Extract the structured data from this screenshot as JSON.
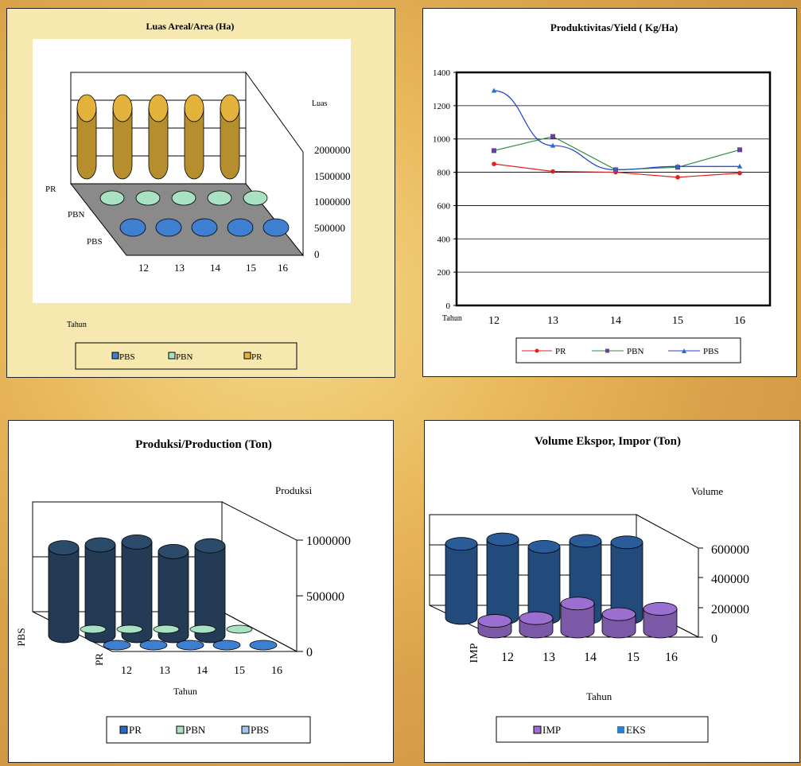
{
  "colors": {
    "pbs": "#3f7fd0",
    "pbn": "#a8e2c2",
    "pr_area": "#e3b23a",
    "pr_line": "#e02020",
    "pbn_line": "#2f8f3a",
    "pbs_line": "#2040d0",
    "prod_bar": "#2c4a6a",
    "eks": "#2a5c9a",
    "imp": "#9b6fd0"
  },
  "chart_data": [
    {
      "type": "bar",
      "id": "area",
      "title": "Luas Areal/Area (Ha)",
      "xlabel": "Tahun",
      "ylabel": "Luas",
      "categories": [
        "12",
        "13",
        "14",
        "15",
        "16"
      ],
      "yticks": [
        "2000000",
        "1500000",
        "1000000",
        "500000",
        "0"
      ],
      "depth_labels": [
        "PR",
        "PBN",
        "PBS"
      ],
      "series": [
        {
          "name": "PBS",
          "values": [
            0,
            0,
            0,
            0,
            0
          ]
        },
        {
          "name": "PBN",
          "values": [
            0,
            0,
            0,
            0,
            0
          ]
        },
        {
          "name": "PR",
          "values": [
            2000000,
            2000000,
            2000000,
            2000000,
            2000000
          ]
        }
      ],
      "legend": [
        "PBS",
        "PBN",
        "PR"
      ]
    },
    {
      "type": "line",
      "id": "yield",
      "title": "Produktivitas/Yield ( Kg/Ha)",
      "xlabel": "Tahun",
      "categories": [
        "12",
        "13",
        "14",
        "15",
        "16"
      ],
      "ylim": [
        0,
        1400
      ],
      "yticks": [
        "1400",
        "1200",
        "1000",
        "800",
        "600",
        "400",
        "200",
        "0"
      ],
      "series": [
        {
          "name": "PR",
          "values": [
            850,
            805,
            800,
            770,
            795
          ]
        },
        {
          "name": "PBN",
          "values": [
            930,
            1015,
            815,
            830,
            935
          ]
        },
        {
          "name": "PBS",
          "values": [
            1290,
            960,
            815,
            835,
            835
          ]
        }
      ],
      "legend": [
        "PR",
        "PBN",
        "PBS"
      ]
    },
    {
      "type": "bar",
      "id": "production",
      "title": "Produksi/Production  (Ton)",
      "xlabel": "Tahun",
      "ylabel": "Produksi",
      "categories": [
        "12",
        "13",
        "14",
        "15",
        "16"
      ],
      "yticks": [
        "1000000",
        "500000",
        "0"
      ],
      "depth_labels": [
        "PBS",
        "PR"
      ],
      "series": [
        {
          "name": "PR",
          "values": [
            0,
            0,
            0,
            0,
            0
          ]
        },
        {
          "name": "PBN",
          "values": [
            0,
            0,
            0,
            0,
            0
          ]
        },
        {
          "name": "PBS",
          "values": [
            920000,
            950000,
            980000,
            880000,
            940000
          ]
        }
      ],
      "legend": [
        "PR",
        "PBN",
        "PBS"
      ]
    },
    {
      "type": "bar",
      "id": "export",
      "title": "Volume  Ekspor,  Impor (Ton)",
      "xlabel": "Tahun",
      "ylabel": "Volume",
      "categories": [
        "12",
        "13",
        "14",
        "15",
        "16"
      ],
      "yticks": [
        "600000",
        "400000",
        "200000",
        "0"
      ],
      "depth_labels": [
        "IMP"
      ],
      "series": [
        {
          "name": "IMP",
          "values": [
            80000,
            100000,
            210000,
            130000,
            170000
          ]
        },
        {
          "name": "EKS",
          "values": [
            500000,
            530000,
            480000,
            520000,
            510000
          ]
        }
      ],
      "legend": [
        "IMP",
        "EKS"
      ]
    }
  ]
}
